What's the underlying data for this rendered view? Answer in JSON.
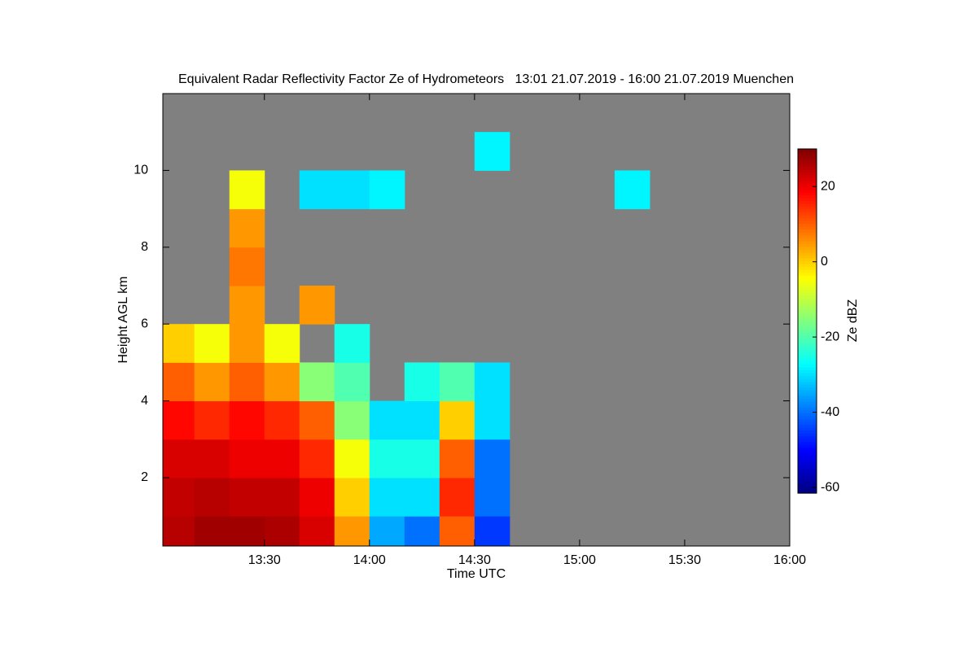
{
  "chart_data": {
    "type": "heatmap",
    "title": "Equivalent Radar Reflectivity Factor Ze of Hydrometeors   13:01 21.07.2019 - 16:00 21.07.2019 Muenchen",
    "x_label": "Time UTC",
    "y_label": "Height AGL km",
    "colorbar_label": "Ze dBZ",
    "colormap": "jet",
    "background": "#808080",
    "xlim": [
      13.0167,
      16
    ],
    "xticks": [
      {
        "value": 13.5,
        "label": "13:30"
      },
      {
        "value": 14,
        "label": "14:00"
      },
      {
        "value": 14.5,
        "label": "14:30"
      },
      {
        "value": 15,
        "label": "15:00"
      },
      {
        "value": 15.5,
        "label": "15:30"
      },
      {
        "value": 16,
        "label": "16:00"
      }
    ],
    "ylim": [
      0.22,
      12
    ],
    "yticks": [
      2,
      4,
      6,
      8,
      10
    ],
    "zlim": [
      -61.5,
      30
    ],
    "colorbar_ticks": [
      -60,
      -40,
      -20,
      0,
      20
    ],
    "x": [
      13.0833,
      13.25,
      13.4167,
      13.5833,
      13.75,
      13.9167,
      14.0833,
      14.25,
      14.4167,
      14.5833,
      14.75,
      14.9167,
      15.0833,
      15.25,
      15.4167,
      15.5833,
      15.75,
      15.9167
    ],
    "y": [
      0.5,
      1.5,
      2.5,
      3.5,
      4.5,
      5.5,
      6.5,
      7.5,
      8.5,
      9.5,
      10.5,
      11.5
    ],
    "z": [
      [
        25,
        27,
        27,
        26,
        22,
        5,
        -35,
        -40,
        10,
        -45,
        null,
        null,
        null,
        null,
        null,
        null,
        null,
        null
      ],
      [
        24,
        25,
        24,
        24,
        20,
        0,
        -30,
        -30,
        15,
        -40,
        null,
        null,
        null,
        null,
        null,
        null,
        null,
        null
      ],
      [
        22,
        22,
        20,
        20,
        15,
        -5,
        -25,
        -25,
        10,
        -40,
        null,
        null,
        null,
        null,
        null,
        null,
        null,
        null
      ],
      [
        18,
        15,
        18,
        15,
        10,
        -15,
        -30,
        -30,
        0,
        -30,
        null,
        null,
        null,
        null,
        null,
        null,
        null,
        null
      ],
      [
        10,
        5,
        10,
        5,
        -15,
        -20,
        null,
        -25,
        -20,
        -30,
        null,
        null,
        null,
        null,
        null,
        null,
        null,
        null
      ],
      [
        0,
        -5,
        5,
        -5,
        null,
        -25,
        null,
        null,
        null,
        null,
        null,
        null,
        null,
        null,
        null,
        null,
        null,
        null
      ],
      [
        null,
        null,
        5,
        null,
        5,
        null,
        null,
        null,
        null,
        null,
        null,
        null,
        null,
        null,
        null,
        null,
        null,
        null
      ],
      [
        null,
        null,
        8,
        null,
        null,
        null,
        null,
        null,
        null,
        null,
        null,
        null,
        null,
        null,
        null,
        null,
        null,
        null
      ],
      [
        null,
        null,
        5,
        null,
        null,
        null,
        null,
        null,
        null,
        null,
        null,
        null,
        null,
        null,
        null,
        null,
        null,
        null
      ],
      [
        null,
        null,
        -5,
        null,
        -30,
        -30,
        -28,
        null,
        null,
        null,
        null,
        null,
        null,
        -28,
        null,
        null,
        null,
        null
      ],
      [
        null,
        null,
        null,
        null,
        null,
        null,
        null,
        null,
        null,
        -28,
        null,
        null,
        null,
        null,
        null,
        null,
        null,
        null
      ],
      [
        null,
        null,
        null,
        null,
        null,
        null,
        null,
        null,
        null,
        null,
        null,
        null,
        null,
        null,
        null,
        null,
        null,
        null
      ]
    ]
  }
}
